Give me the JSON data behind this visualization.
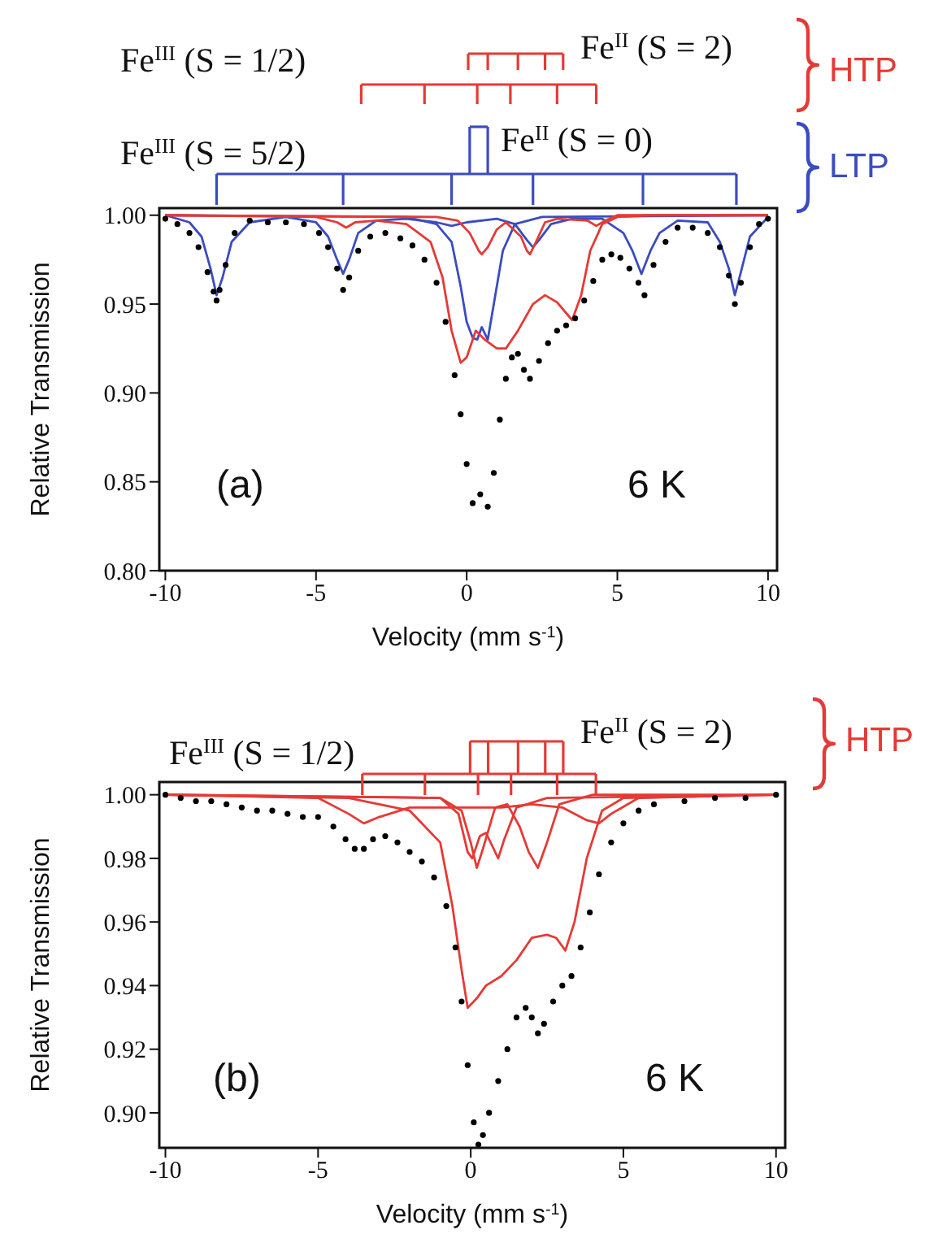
{
  "chart_data": [
    {
      "type": "line",
      "xlabel": "Velocity (mm s$^{-1}$)",
      "ylabel": "Relative Transmission",
      "xlim": [
        -10.2,
        10.3
      ],
      "xticks": [
        -10,
        -5,
        0,
        5,
        10
      ],
      "ylim": [
        0.8,
        1.004
      ],
      "yticks": [
        {
          "value": 0.8,
          "label": "0.80"
        },
        {
          "value": 0.85,
          "label": "0.85"
        },
        {
          "value": 0.9,
          "label": "0.90"
        },
        {
          "value": 0.95,
          "label": "0.95"
        },
        {
          "value": 1,
          "label": "1.00"
        }
      ],
      "annotations": [
        "Fe$^{III}$ (S = 1/2)",
        "Fe$^{II}$ (S = 2)",
        "Fe$^{III}$ (S = 5/2)",
        "Fe$^{II}$ (S = 0)",
        "HTP",
        "LTP",
        "(a)",
        "6 K"
      ],
      "series": [
        {
          "type": "scatter",
          "marker": "circle",
          "color": "#000000",
          "x": [
            -10,
            -9.6,
            -9.2,
            -8.9,
            -8.6,
            -8.4,
            -8.3,
            -8.2,
            -8.0,
            -7.7,
            -7.2,
            -6.6,
            -6,
            -5.4,
            -4.9,
            -4.6,
            -4.3,
            -4.1,
            -3.9,
            -3.6,
            -3.2,
            -2.7,
            -2.2,
            -1.8,
            -1.4,
            -1.0,
            -0.7,
            -0.4,
            -0.2,
            0,
            0.2,
            0.45,
            0.7,
            0.9,
            1.1,
            1.3,
            1.5,
            1.7,
            1.9,
            2.1,
            2.4,
            2.7,
            3.0,
            3.3,
            3.6,
            3.9,
            4.2,
            4.5,
            4.8,
            5.1,
            5.4,
            5.7,
            5.9,
            6.2,
            6.6,
            7.0,
            7.5,
            8.0,
            8.4,
            8.7,
            8.9,
            9.1,
            9.4,
            9.7,
            10
          ],
          "values": [
            0.998,
            0.995,
            0.99,
            0.982,
            0.968,
            0.957,
            0.952,
            0.958,
            0.972,
            0.99,
            0.997,
            0.996,
            0.996,
            0.995,
            0.99,
            0.982,
            0.97,
            0.958,
            0.965,
            0.98,
            0.988,
            0.99,
            0.987,
            0.983,
            0.975,
            0.962,
            0.94,
            0.91,
            0.888,
            0.86,
            0.838,
            0.843,
            0.836,
            0.855,
            0.885,
            0.908,
            0.92,
            0.922,
            0.913,
            0.908,
            0.918,
            0.928,
            0.935,
            0.938,
            0.942,
            0.952,
            0.963,
            0.975,
            0.978,
            0.976,
            0.97,
            0.962,
            0.955,
            0.972,
            0.985,
            0.993,
            0.993,
            0.99,
            0.982,
            0.966,
            0.95,
            0.962,
            0.982,
            0.995,
            0.998
          ]
        },
        {
          "color": "#3b4cc0",
          "x": [
            -10,
            -9.2,
            -8.8,
            -8.5,
            -8.3,
            -8.1,
            -7.8,
            -7.2,
            -6,
            -5,
            -4.6,
            -4.3,
            -4.1,
            -3.9,
            -3.6,
            -3,
            -2,
            -1,
            -0.5,
            0,
            1,
            1.6,
            2.0,
            2.2,
            2.4,
            2.8,
            3.5,
            4.5,
            5.2,
            5.5,
            5.8,
            6.1,
            6.4,
            7,
            8,
            8.4,
            8.7,
            8.9,
            9.1,
            9.4,
            10
          ],
          "values": [
            1.0,
            0.996,
            0.988,
            0.97,
            0.955,
            0.965,
            0.985,
            0.996,
            0.999,
            0.996,
            0.988,
            0.975,
            0.967,
            0.975,
            0.99,
            0.997,
            0.998,
            0.996,
            0.994,
            0.996,
            0.998,
            0.995,
            0.986,
            0.982,
            0.986,
            0.995,
            0.998,
            0.998,
            0.99,
            0.98,
            0.967,
            0.98,
            0.99,
            0.997,
            0.996,
            0.985,
            0.97,
            0.955,
            0.968,
            0.988,
            0.999
          ]
        },
        {
          "color": "#3b4cc0",
          "x": [
            -10,
            -2,
            -1,
            -0.5,
            -0.2,
            0,
            0.2,
            0.35,
            0.5,
            0.7,
            0.9,
            1.2,
            1.6,
            2.5,
            10
          ],
          "values": [
            1,
            0.999,
            0.995,
            0.985,
            0.96,
            0.94,
            0.931,
            0.93,
            0.937,
            0.93,
            0.95,
            0.98,
            0.995,
            0.999,
            1
          ]
        },
        {
          "color": "#e53a35",
          "x": [
            -10,
            -5,
            -4.3,
            -4,
            -3.7,
            -3,
            -2,
            -1.2,
            -0.8,
            -0.5,
            -0.2,
            0,
            0.3,
            0.6,
            1.0,
            1.3,
            1.7,
            2.2,
            2.6,
            3.0,
            3.3,
            3.5,
            3.8,
            4.1,
            4.5,
            5,
            6,
            10
          ],
          "values": [
            1,
            0.999,
            0.996,
            0.993,
            0.996,
            0.997,
            0.995,
            0.985,
            0.965,
            0.935,
            0.917,
            0.92,
            0.935,
            0.93,
            0.925,
            0.925,
            0.935,
            0.95,
            0.955,
            0.951,
            0.945,
            0.941,
            0.955,
            0.98,
            0.995,
            0.999,
            1,
            1
          ]
        },
        {
          "color": "#e53a35",
          "x": [
            -10,
            -1,
            -0.3,
            0.1,
            0.4,
            0.5,
            0.7,
            1.0,
            1.3,
            1.8,
            2.0,
            2.1,
            2.3,
            2.6,
            3,
            4,
            4.3,
            4.6,
            5,
            10
          ],
          "values": [
            1,
            0.999,
            0.997,
            0.99,
            0.98,
            0.978,
            0.982,
            0.992,
            0.996,
            0.988,
            0.98,
            0.978,
            0.985,
            0.996,
            0.998,
            0.997,
            0.994,
            0.997,
            1,
            1
          ]
        }
      ]
    },
    {
      "type": "line",
      "xlabel": "Velocity (mm s$^{-1}$)",
      "ylabel": "Relative Transmission",
      "xlim": [
        -10.2,
        10.3
      ],
      "xticks": [
        -10,
        -5,
        0,
        5,
        10
      ],
      "ylim": [
        0.889,
        1.004
      ],
      "yticks": [
        {
          "value": 0.9,
          "label": "0.90"
        },
        {
          "value": 0.92,
          "label": "0.92"
        },
        {
          "value": 0.94,
          "label": "0.94"
        },
        {
          "value": 0.96,
          "label": "0.96"
        },
        {
          "value": 0.98,
          "label": "0.98"
        },
        {
          "value": 1,
          "label": "1.00"
        }
      ],
      "annotations": [
        "Fe$^{III}$ (S = 1/2)",
        "Fe$^{II}$ (S = 2)",
        "HTP",
        "(b)",
        "6 K"
      ],
      "series": [
        {
          "type": "scatter",
          "marker": "circle",
          "color": "#000000",
          "x": [
            -10,
            -9.5,
            -9,
            -8.5,
            -8,
            -7.5,
            -7,
            -6.5,
            -6,
            -5.5,
            -5,
            -4.5,
            -4.1,
            -3.8,
            -3.5,
            -3.2,
            -2.8,
            -2.4,
            -2,
            -1.6,
            -1.2,
            -0.8,
            -0.5,
            -0.3,
            -0.1,
            0.1,
            0.25,
            0.4,
            0.6,
            0.9,
            1.2,
            1.5,
            1.8,
            2.0,
            2.2,
            2.4,
            2.7,
            3.0,
            3.3,
            3.6,
            3.9,
            4.2,
            4.6,
            5,
            5.5,
            6,
            7,
            8,
            9,
            10
          ],
          "values": [
            1.0,
            0.999,
            0.998,
            0.998,
            0.997,
            0.996,
            0.995,
            0.995,
            0.994,
            0.993,
            0.993,
            0.99,
            0.986,
            0.983,
            0.983,
            0.986,
            0.987,
            0.985,
            0.982,
            0.979,
            0.974,
            0.965,
            0.952,
            0.935,
            0.915,
            0.897,
            0.89,
            0.893,
            0.9,
            0.91,
            0.92,
            0.93,
            0.933,
            0.93,
            0.925,
            0.928,
            0.935,
            0.94,
            0.943,
            0.952,
            0.963,
            0.975,
            0.985,
            0.991,
            0.995,
            0.997,
            0.998,
            0.999,
            0.999,
            1.0
          ]
        },
        {
          "color": "#e53a35",
          "x": [
            -10,
            -4,
            -2,
            -1,
            -0.6,
            -0.3,
            -0.1,
            0.2,
            0.5,
            1,
            1.5,
            2,
            2.5,
            2.8,
            3.1,
            3.4,
            3.8,
            4.3,
            5,
            10
          ],
          "values": [
            1,
            0.999,
            0.995,
            0.985,
            0.965,
            0.945,
            0.933,
            0.936,
            0.94,
            0.943,
            0.948,
            0.955,
            0.956,
            0.955,
            0.951,
            0.96,
            0.98,
            0.995,
            0.999,
            1
          ]
        },
        {
          "color": "#e53a35",
          "x": [
            -10,
            -5,
            -4,
            -3.5,
            -3,
            -2,
            -1,
            0,
            1,
            2,
            3,
            3.8,
            4.2,
            4.6,
            5.5,
            10
          ],
          "values": [
            1,
            0.999,
            0.994,
            0.991,
            0.993,
            0.996,
            0.996,
            0.996,
            0.996,
            0.997,
            0.996,
            0.992,
            0.991,
            0.994,
            0.999,
            1
          ]
        },
        {
          "color": "#e53a35",
          "x": [
            -10,
            -1,
            -0.3,
            0,
            0.2,
            0.4,
            0.8,
            1.2,
            1.6,
            1.9,
            2.2,
            2.5,
            2.9,
            4,
            10
          ],
          "values": [
            1,
            0.999,
            0.995,
            0.985,
            0.977,
            0.983,
            0.996,
            0.997,
            0.99,
            0.982,
            0.977,
            0.985,
            0.997,
            1,
            1
          ]
        },
        {
          "color": "#e53a35",
          "x": [
            -10,
            -1,
            -0.4,
            -0.1,
            0.05,
            0.3,
            0.5,
            0.7,
            0.9,
            1.1,
            1.5,
            2.5,
            10
          ],
          "values": [
            1,
            0.999,
            0.994,
            0.982,
            0.98,
            0.987,
            0.988,
            0.984,
            0.98,
            0.986,
            0.996,
            0.999,
            1
          ]
        }
      ]
    }
  ]
}
